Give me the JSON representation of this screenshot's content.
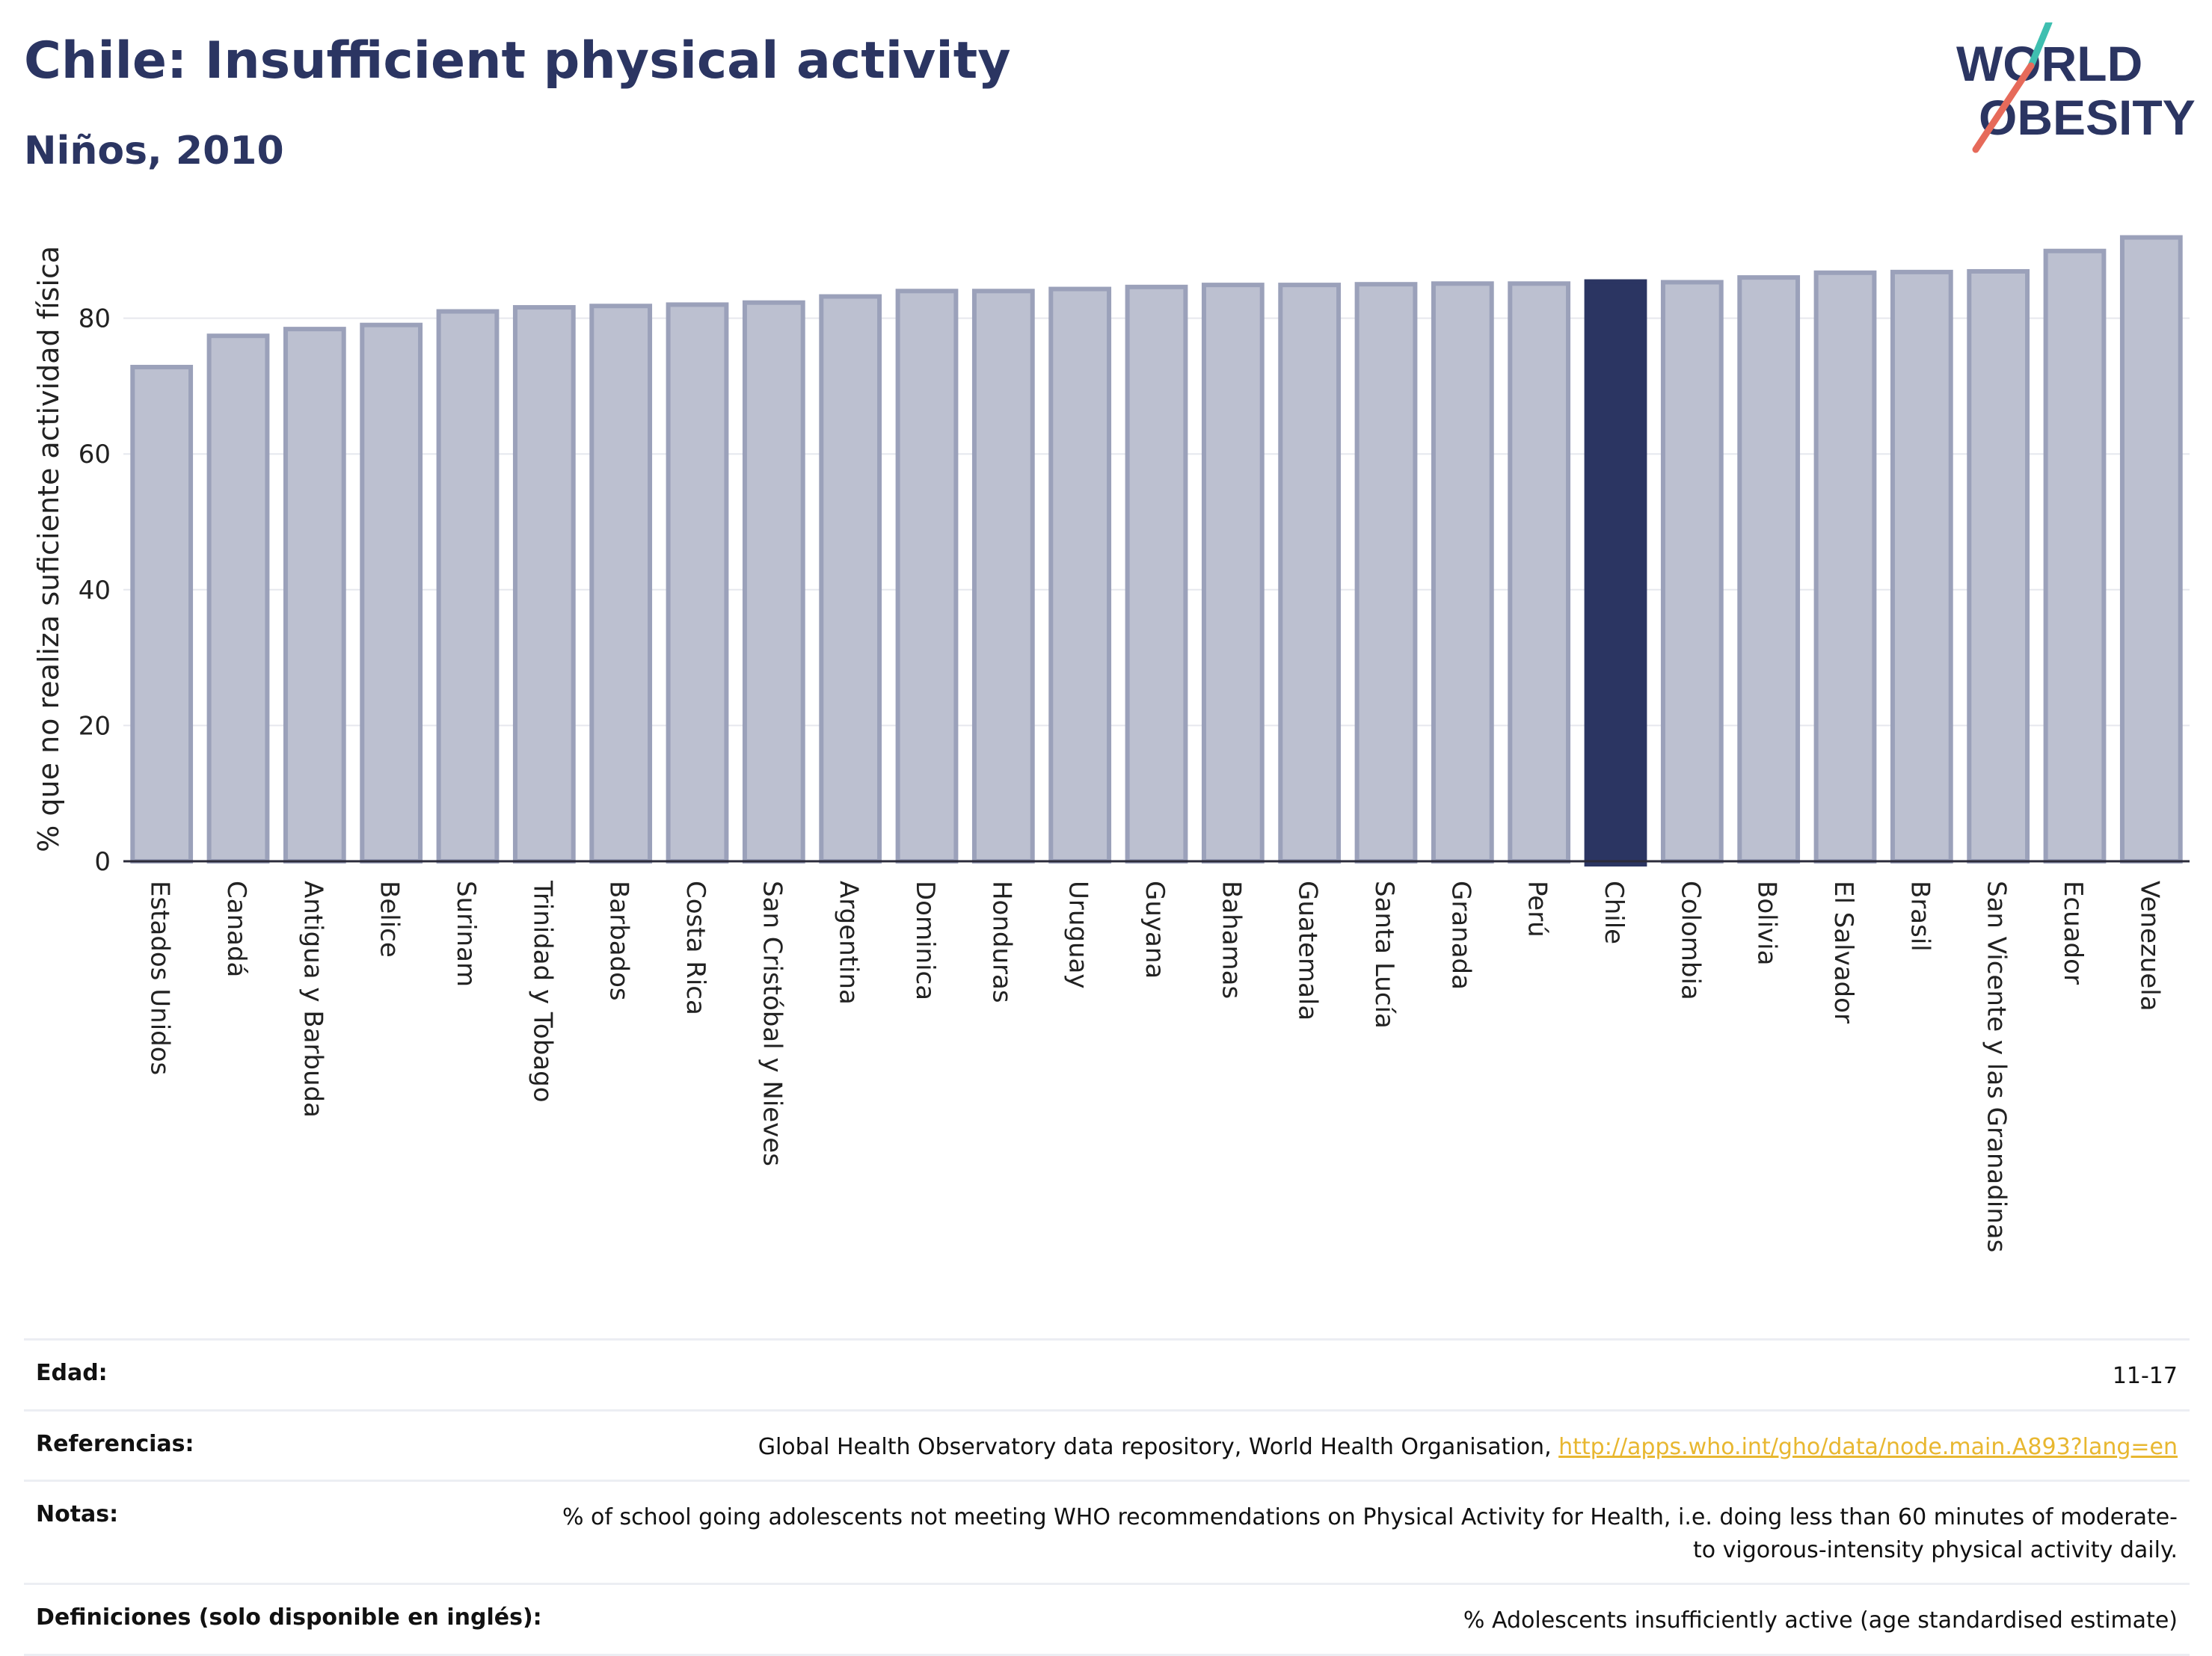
{
  "header": {
    "title": "Chile: Insufficient physical activity",
    "subtitle": "Niños, 2010"
  },
  "logo": {
    "line1": "WORLD",
    "line2": "OBESITY"
  },
  "colors": {
    "bar": "#bcc0d0",
    "bar_edge": "#9ba1ba",
    "highlight": "#2b3562",
    "grid": "#e6e8ee",
    "axis": "#2b2b3a"
  },
  "chart_data": {
    "type": "bar",
    "title": "Chile: Insufficient physical activity",
    "subtitle": "Niños, 2010",
    "xlabel": "",
    "ylabel": "% que no realiza suficiente actividad física",
    "ylim": [
      0,
      95
    ],
    "yticks": [
      0,
      20,
      40,
      60,
      80
    ],
    "grid": true,
    "highlight": "Chile",
    "categories": [
      "Estados Unidos",
      "Canadá",
      "Antigua y Barbuda",
      "Belice",
      "Surinam",
      "Trinidad y Tobago",
      "Barbados",
      "Costa Rica",
      "San Cristóbal y Nieves",
      "Argentina",
      "Dominica",
      "Honduras",
      "Uruguay",
      "Guyana",
      "Bahamas",
      "Guatemala",
      "Santa Lucía",
      "Granada",
      "Perú",
      "Chile",
      "Colombia",
      "Bolivia",
      "El Salvador",
      "Brasil",
      "San Vicente y las Granadinas",
      "Ecuador",
      "Venezuela"
    ],
    "values": [
      72.8,
      77.4,
      78.4,
      79.0,
      81.0,
      81.6,
      81.8,
      82.0,
      82.3,
      83.2,
      84.0,
      84.0,
      84.3,
      84.6,
      84.9,
      84.9,
      85.0,
      85.1,
      85.1,
      85.4,
      85.3,
      86.0,
      86.7,
      86.8,
      86.9,
      89.9,
      91.9
    ]
  },
  "meta": [
    {
      "label": "Edad:",
      "value": "11-17"
    },
    {
      "label": "Referencias:",
      "value": "Global Health Observatory data repository, World Health Organisation, ",
      "link": "http://apps.who.int/gho/data/node.main.A893?lang=en"
    },
    {
      "label": "Notas:",
      "value": "% of school going adolescents not meeting WHO recommendations on Physical Activity for Health, i.e. doing less than 60 minutes of moderate- to vigorous-intensity physical activity daily."
    },
    {
      "label": "Definiciones (solo disponible en inglés):",
      "value": "% Adolescents insufficiently active (age standardised estimate)"
    }
  ]
}
